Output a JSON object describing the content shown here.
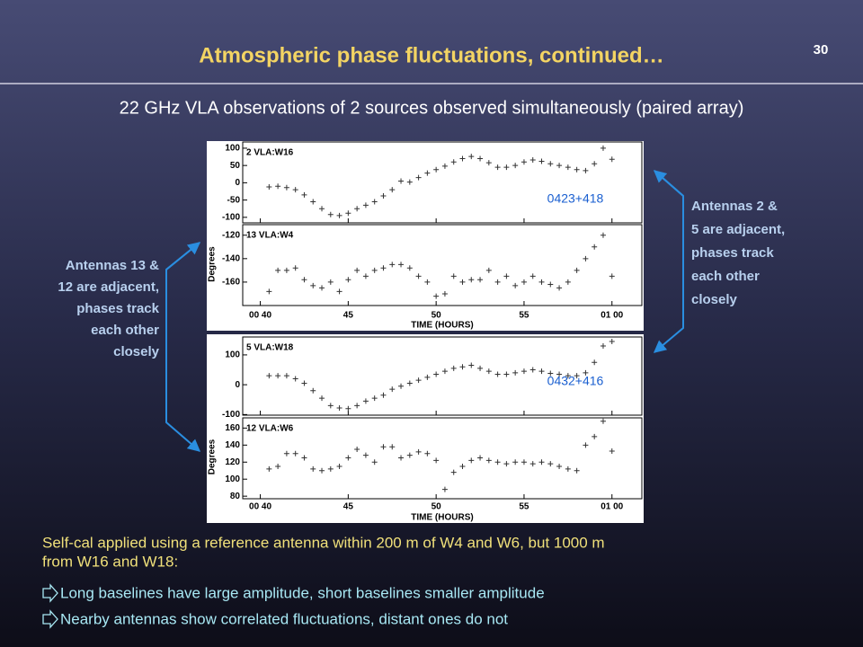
{
  "slide_number": "30",
  "title": "Atmospheric phase fluctuations, continued…",
  "subtitle": "22 GHz VLA observations of 2 sources observed simultaneously (paired array)",
  "left_note": [
    "Antennas 13 &",
    "12 are adjacent,",
    "phases track",
    "each other",
    "closely"
  ],
  "right_note": [
    "Antennas 2 &",
    "5 are adjacent,",
    "phases track",
    "each other",
    "closely"
  ],
  "figures": [
    {
      "source": "0423+418",
      "ylabel": "Degrees",
      "xlabel": "TIME (HOURS)",
      "xlim": [
        39,
        61.7
      ],
      "xticks": [
        {
          "value": 40,
          "label": "00 40"
        },
        45,
        50,
        55,
        {
          "value": 60,
          "label": "01 00"
        }
      ],
      "x": [
        40.5,
        41,
        41.5,
        42,
        42.5,
        43,
        43.5,
        44,
        44.5,
        45,
        45.5,
        46,
        46.5,
        47,
        47.5,
        48,
        48.5,
        49,
        49.5,
        50,
        50.5,
        51,
        51.5,
        52,
        52.5,
        53,
        53.5,
        54,
        54.5,
        55,
        55.5,
        56,
        56.5,
        57,
        57.5,
        58,
        58.5,
        59,
        59.5,
        60
      ],
      "panels": [
        {
          "label": "2 VLA:W16",
          "ylim": [
            -116,
            118
          ],
          "yticks": [
            100,
            50,
            0,
            -50,
            -100
          ],
          "values": [
            -12,
            -10,
            -14,
            -20,
            -35,
            -55,
            -75,
            -92,
            -95,
            -88,
            -75,
            -65,
            -55,
            -38,
            -20,
            5,
            2,
            15,
            28,
            38,
            48,
            60,
            70,
            76,
            70,
            58,
            45,
            45,
            50,
            60,
            66,
            62,
            55,
            50,
            45,
            38,
            35,
            55,
            100,
            68
          ]
        },
        {
          "label": "13 VLA:W4",
          "ylim": [
            -180,
            -111
          ],
          "yticks": [
            -120,
            -140,
            -160
          ],
          "values": [
            -168,
            -150,
            -150,
            -148,
            -158,
            -163,
            -165,
            -160,
            -168,
            -158,
            -150,
            -155,
            -150,
            -148,
            -145,
            -145,
            -148,
            -155,
            -160,
            -172,
            -170,
            -155,
            -160,
            -158,
            -158,
            -150,
            -160,
            -155,
            -163,
            -160,
            -155,
            -160,
            -162,
            -165,
            -160,
            -150,
            -140,
            -130,
            -120,
            -155
          ]
        }
      ]
    },
    {
      "source": "0432+416",
      "ylabel": "Degrees",
      "xlabel": "TIME (HOURS)",
      "xlim": [
        39,
        61.7
      ],
      "xticks": [
        {
          "value": 40,
          "label": "00 40"
        },
        45,
        50,
        55,
        {
          "value": 60,
          "label": "01 00"
        }
      ],
      "x": [
        40.5,
        41,
        41.5,
        42,
        42.5,
        43,
        43.5,
        44,
        44.5,
        45,
        45.5,
        46,
        46.5,
        47,
        47.5,
        48,
        48.5,
        49,
        49.5,
        50,
        50.5,
        51,
        51.5,
        52,
        52.5,
        53,
        53.5,
        54,
        54.5,
        55,
        55.5,
        56,
        56.5,
        57,
        57.5,
        58,
        58.5,
        59,
        59.5,
        60
      ],
      "panels": [
        {
          "label": "5 VLA:W18",
          "ylim": [
            -102,
            160
          ],
          "yticks": [
            100,
            0,
            -100
          ],
          "values": [
            30,
            30,
            30,
            20,
            5,
            -20,
            -45,
            -70,
            -78,
            -80,
            -70,
            -55,
            -45,
            -35,
            -15,
            -5,
            5,
            15,
            25,
            35,
            45,
            55,
            60,
            65,
            55,
            45,
            35,
            35,
            40,
            45,
            50,
            45,
            38,
            35,
            30,
            30,
            40,
            75,
            130,
            145
          ]
        },
        {
          "label": "12 VLA:W6",
          "ylim": [
            77,
            172
          ],
          "yticks": [
            160,
            140,
            120,
            100,
            80
          ],
          "values": [
            112,
            115,
            130,
            130,
            125,
            112,
            110,
            112,
            115,
            125,
            135,
            128,
            120,
            138,
            138,
            125,
            128,
            132,
            130,
            122,
            88,
            108,
            115,
            122,
            125,
            122,
            120,
            118,
            120,
            120,
            118,
            120,
            118,
            115,
            112,
            110,
            140,
            150,
            168,
            133
          ]
        }
      ]
    }
  ],
  "body": {
    "text": [
      "Self-cal applied using a reference antenna within 200 m of W4 and W6, but 1000 m",
      "from W16 and W18:"
    ],
    "bullets": [
      "Long baselines have large amplitude, short baselines smaller amplitude",
      "Nearby antennas show correlated fluctuations, distant ones do not"
    ]
  }
}
